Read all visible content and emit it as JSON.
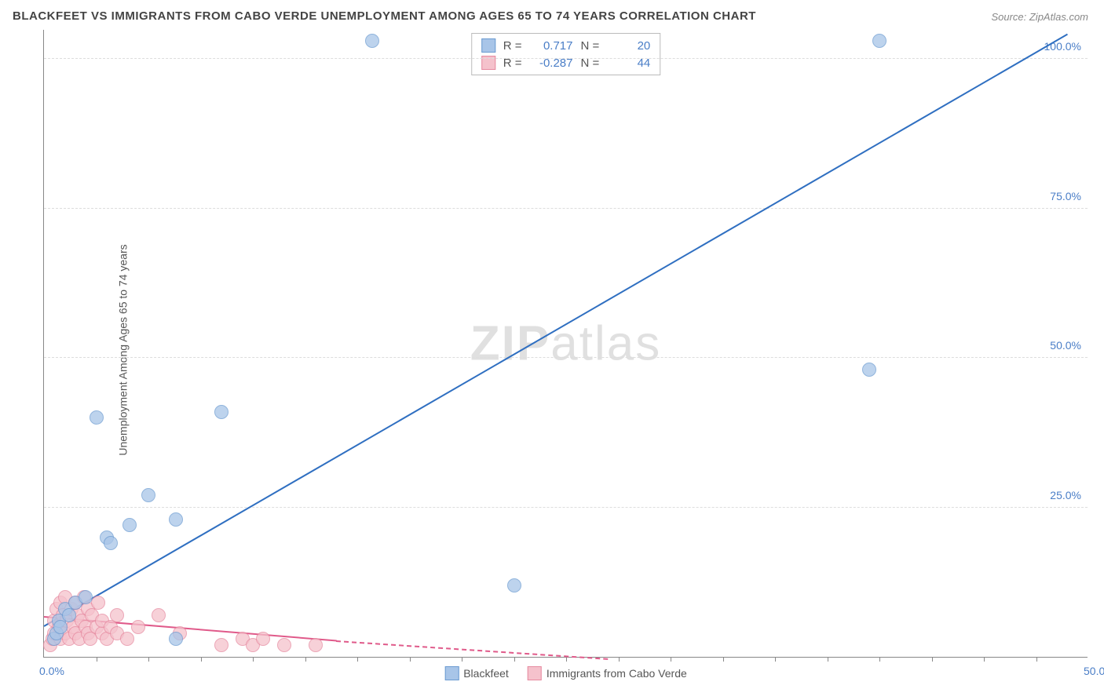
{
  "title": "BLACKFEET VS IMMIGRANTS FROM CABO VERDE UNEMPLOYMENT AMONG AGES 65 TO 74 YEARS CORRELATION CHART",
  "source": "Source: ZipAtlas.com",
  "y_axis_label": "Unemployment Among Ages 65 to 74 years",
  "watermark": {
    "part1": "ZIP",
    "part2": "atlas"
  },
  "chart": {
    "type": "scatter",
    "xlim": [
      0,
      50
    ],
    "ylim": [
      0,
      105
    ],
    "background_color": "#ffffff",
    "grid_color": "#dddddd",
    "y_ticks": [
      {
        "v": 25,
        "label": "25.0%"
      },
      {
        "v": 50,
        "label": "50.0%"
      },
      {
        "v": 75,
        "label": "75.0%"
      },
      {
        "v": 100,
        "label": "100.0%"
      }
    ],
    "x_ticks": [
      {
        "v": 0,
        "label": "0.0%"
      },
      {
        "v": 50,
        "label": "50.0%"
      }
    ],
    "x_minor_ticks": [
      2.5,
      5,
      7.5,
      10,
      12.5,
      15,
      17.5,
      20,
      22.5,
      25,
      27.5,
      30,
      32.5,
      35,
      37.5,
      40,
      42.5,
      45,
      47.5
    ]
  },
  "series": {
    "blackfeet": {
      "label": "Blackfeet",
      "color_fill": "#a8c5e8",
      "color_stroke": "#6b9bd1",
      "line_color": "#2f6fc1",
      "marker_radius": 9,
      "R": "0.717",
      "N": "20",
      "trend": {
        "x1": 0,
        "y1": 5,
        "x2": 49,
        "y2": 104
      },
      "points": [
        {
          "x": 0.5,
          "y": 3
        },
        {
          "x": 0.6,
          "y": 4
        },
        {
          "x": 0.7,
          "y": 6
        },
        {
          "x": 0.8,
          "y": 5
        },
        {
          "x": 1.0,
          "y": 8
        },
        {
          "x": 1.2,
          "y": 7
        },
        {
          "x": 1.5,
          "y": 9
        },
        {
          "x": 2.0,
          "y": 10
        },
        {
          "x": 2.5,
          "y": 40
        },
        {
          "x": 3.0,
          "y": 20
        },
        {
          "x": 3.2,
          "y": 19
        },
        {
          "x": 4.1,
          "y": 22
        },
        {
          "x": 5.0,
          "y": 27
        },
        {
          "x": 6.3,
          "y": 23
        },
        {
          "x": 6.3,
          "y": 3
        },
        {
          "x": 8.5,
          "y": 41
        },
        {
          "x": 15.7,
          "y": 103
        },
        {
          "x": 22.5,
          "y": 12
        },
        {
          "x": 39.5,
          "y": 48
        },
        {
          "x": 40.0,
          "y": 103
        }
      ]
    },
    "caboverde": {
      "label": "Immigrants from Cabo Verde",
      "color_fill": "#f5c2cc",
      "color_stroke": "#e68aa0",
      "line_color": "#e05a8a",
      "marker_radius": 9,
      "R": "-0.287",
      "N": "44",
      "trend": {
        "x1": 0,
        "y1": 6.5,
        "x2": 14,
        "y2": 2.5
      },
      "trend_dash": {
        "x1": 14,
        "y1": 2.5,
        "x2": 27,
        "y2": -0.5
      },
      "points": [
        {
          "x": 0.3,
          "y": 2
        },
        {
          "x": 0.4,
          "y": 3
        },
        {
          "x": 0.5,
          "y": 4
        },
        {
          "x": 0.5,
          "y": 6
        },
        {
          "x": 0.6,
          "y": 8
        },
        {
          "x": 0.7,
          "y": 5
        },
        {
          "x": 0.8,
          "y": 9
        },
        {
          "x": 0.8,
          "y": 3
        },
        {
          "x": 0.9,
          "y": 7
        },
        {
          "x": 1.0,
          "y": 4
        },
        {
          "x": 1.0,
          "y": 10
        },
        {
          "x": 1.1,
          "y": 6
        },
        {
          "x": 1.2,
          "y": 3
        },
        {
          "x": 1.3,
          "y": 8
        },
        {
          "x": 1.4,
          "y": 5
        },
        {
          "x": 1.5,
          "y": 9
        },
        {
          "x": 1.5,
          "y": 4
        },
        {
          "x": 1.6,
          "y": 7
        },
        {
          "x": 1.7,
          "y": 3
        },
        {
          "x": 1.8,
          "y": 6
        },
        {
          "x": 1.9,
          "y": 10
        },
        {
          "x": 2.0,
          "y": 5
        },
        {
          "x": 2.1,
          "y": 8
        },
        {
          "x": 2.1,
          "y": 4
        },
        {
          "x": 2.2,
          "y": 3
        },
        {
          "x": 2.3,
          "y": 7
        },
        {
          "x": 2.5,
          "y": 5
        },
        {
          "x": 2.6,
          "y": 9
        },
        {
          "x": 2.8,
          "y": 4
        },
        {
          "x": 2.8,
          "y": 6
        },
        {
          "x": 3.0,
          "y": 3
        },
        {
          "x": 3.2,
          "y": 5
        },
        {
          "x": 3.5,
          "y": 7
        },
        {
          "x": 3.5,
          "y": 4
        },
        {
          "x": 4.0,
          "y": 3
        },
        {
          "x": 4.5,
          "y": 5
        },
        {
          "x": 5.5,
          "y": 7
        },
        {
          "x": 6.5,
          "y": 4
        },
        {
          "x": 8.5,
          "y": 2
        },
        {
          "x": 9.5,
          "y": 3
        },
        {
          "x": 10.0,
          "y": 2
        },
        {
          "x": 10.5,
          "y": 3
        },
        {
          "x": 11.5,
          "y": 2
        },
        {
          "x": 13.0,
          "y": 2
        }
      ]
    }
  },
  "stats_box": {
    "rows": [
      {
        "swatch_fill": "#a8c5e8",
        "swatch_stroke": "#6b9bd1",
        "r_label": "R =",
        "r_val": "0.717",
        "n_label": "N =",
        "n_val": "20"
      },
      {
        "swatch_fill": "#f5c2cc",
        "swatch_stroke": "#e68aa0",
        "r_label": "R =",
        "r_val": "-0.287",
        "n_label": "N =",
        "n_val": "44"
      }
    ]
  },
  "bottom_legend": [
    {
      "swatch_fill": "#a8c5e8",
      "swatch_stroke": "#6b9bd1",
      "label": "Blackfeet"
    },
    {
      "swatch_fill": "#f5c2cc",
      "swatch_stroke": "#e68aa0",
      "label": "Immigrants from Cabo Verde"
    }
  ]
}
